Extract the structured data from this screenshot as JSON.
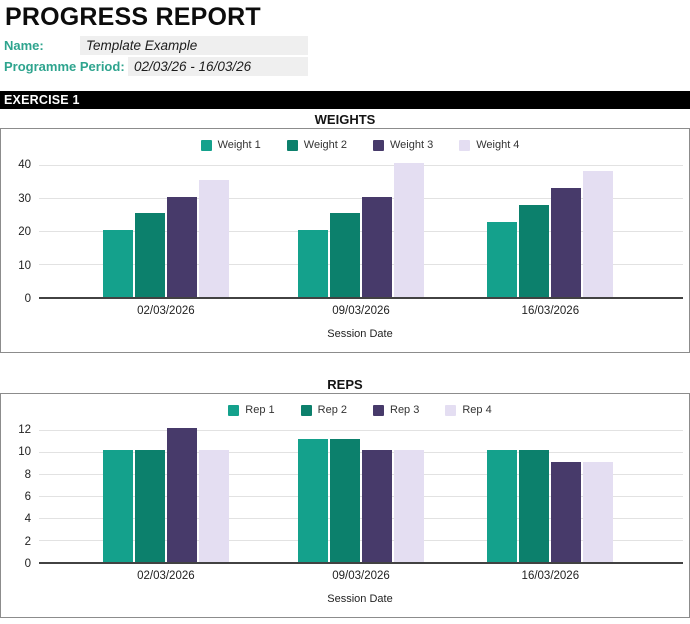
{
  "header": {
    "title": "PROGRESS REPORT",
    "name_label": "Name:",
    "name_value": "Template Example",
    "period_label": "Programme Period:",
    "period_value": "02/03/26 - 16/03/26"
  },
  "exercise_label": "EXERCISE 1",
  "colors": {
    "accent": "#2ea48e",
    "series": [
      "#14a18c",
      "#0c806c",
      "#473a6a",
      "#e4def2"
    ],
    "exercise_bar_bg": "#000000",
    "field_bg": "#efefef",
    "gridline": "#e2e2e2",
    "axis_line": "#424242",
    "container_border": "#8c8c8c"
  },
  "chart_data": [
    {
      "type": "bar",
      "title": "WEIGHTS",
      "categories": [
        "02/03/2026",
        "09/03/2026",
        "16/03/2026"
      ],
      "series": [
        {
          "name": "Weight 1",
          "values": [
            20,
            20,
            22.5
          ]
        },
        {
          "name": "Weight 2",
          "values": [
            25,
            25,
            27.5
          ]
        },
        {
          "name": "Weight 3",
          "values": [
            30,
            30,
            32.5
          ]
        },
        {
          "name": "Weight 4",
          "values": [
            35,
            40,
            37.5
          ]
        }
      ],
      "xlabel": "Session Date",
      "ylabel": "",
      "ylim": [
        0,
        40
      ],
      "yticks": [
        0,
        10,
        20,
        30,
        40
      ],
      "grid": true,
      "legend_position": "top"
    },
    {
      "type": "bar",
      "title": "REPS",
      "categories": [
        "02/03/2026",
        "09/03/2026",
        "16/03/2026"
      ],
      "series": [
        {
          "name": "Rep 1",
          "values": [
            10,
            11,
            10
          ]
        },
        {
          "name": "Rep 2",
          "values": [
            10,
            11,
            10
          ]
        },
        {
          "name": "Rep 3",
          "values": [
            12,
            10,
            9
          ]
        },
        {
          "name": "Rep 4",
          "values": [
            10,
            10,
            9
          ]
        }
      ],
      "xlabel": "Session Date",
      "ylabel": "",
      "ylim": [
        0,
        12
      ],
      "yticks": [
        0,
        2,
        4,
        6,
        8,
        10,
        12
      ],
      "grid": true,
      "legend_position": "top"
    }
  ]
}
